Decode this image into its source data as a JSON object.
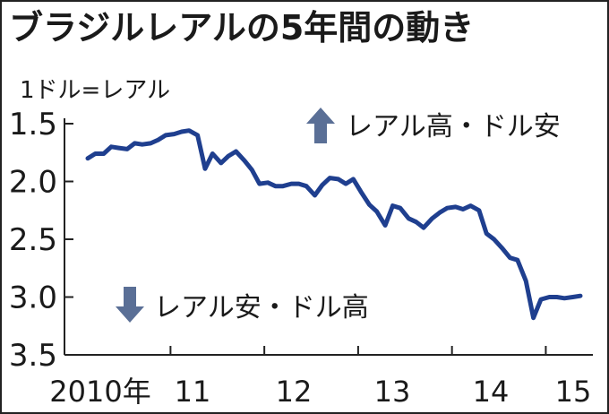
{
  "header": {
    "title": "ブラジルレアルの5年間の動き",
    "unit_label": "1ドル=レアル"
  },
  "annotations": {
    "up_text": "レアル高・ドル安",
    "down_text": "レアル安・ドル高",
    "up_icon": "arrow-up-icon",
    "down_icon": "arrow-down-icon"
  },
  "colors": {
    "line": "#1f3f8f",
    "arrow": "#5a6f96",
    "axis": "#222222"
  },
  "chart_data": {
    "type": "line",
    "title": "ブラジルレアルの5年間の動き",
    "ylabel": "1ドル=レアル",
    "xlabel": "",
    "ylim": [
      3.5,
      1.5
    ],
    "y_inverted": true,
    "xlim": [
      2010.0,
      2015.25
    ],
    "y_ticks": [
      "1.5",
      "2.0",
      "2.5",
      "3.0",
      "3.5"
    ],
    "y_tick_values": [
      1.5,
      2.0,
      2.5,
      3.0,
      3.5
    ],
    "x_tick_labels": [
      "2010年",
      "11",
      "12",
      "13",
      "14",
      "15"
    ],
    "x_tick_values": [
      2010.0,
      2011.0,
      2012.0,
      2013.0,
      2014.0,
      2015.0
    ],
    "grid": false,
    "series": [
      {
        "x": [
          2010.0,
          2010.08,
          2010.17,
          2010.25,
          2010.33,
          2010.42,
          2010.5,
          2010.58,
          2010.67,
          2010.75,
          2010.83,
          2010.92,
          2011.0,
          2011.08,
          2011.17,
          2011.25,
          2011.33,
          2011.42,
          2011.5,
          2011.58,
          2011.67,
          2011.75,
          2011.83,
          2011.92,
          2012.0,
          2012.08,
          2012.17,
          2012.25,
          2012.33,
          2012.42,
          2012.5,
          2012.58,
          2012.67,
          2012.75,
          2012.83,
          2012.92,
          2013.0,
          2013.08,
          2013.17,
          2013.25,
          2013.33,
          2013.42,
          2013.5,
          2013.58,
          2013.67,
          2013.75,
          2013.83,
          2013.92,
          2014.0,
          2014.08,
          2014.17,
          2014.25,
          2014.33,
          2014.42,
          2014.5,
          2014.58,
          2014.67,
          2014.75,
          2014.83,
          2014.92,
          2015.0,
          2015.08,
          2015.17,
          2015.25
        ],
        "values": [
          1.8,
          1.76,
          1.76,
          1.7,
          1.71,
          1.72,
          1.67,
          1.68,
          1.67,
          1.64,
          1.6,
          1.59,
          1.57,
          1.56,
          1.6,
          1.89,
          1.76,
          1.84,
          1.78,
          1.74,
          1.82,
          1.9,
          2.02,
          2.01,
          2.04,
          2.04,
          2.02,
          2.02,
          2.04,
          2.12,
          2.03,
          1.97,
          1.98,
          2.02,
          1.98,
          2.1,
          2.2,
          2.26,
          2.38,
          2.21,
          2.23,
          2.32,
          2.35,
          2.4,
          2.32,
          2.27,
          2.23,
          2.22,
          2.24,
          2.21,
          2.25,
          2.45,
          2.5,
          2.58,
          2.66,
          2.68,
          2.86,
          3.18,
          3.02,
          3.0,
          3.0,
          3.01,
          3.0,
          2.99
        ]
      }
    ]
  }
}
